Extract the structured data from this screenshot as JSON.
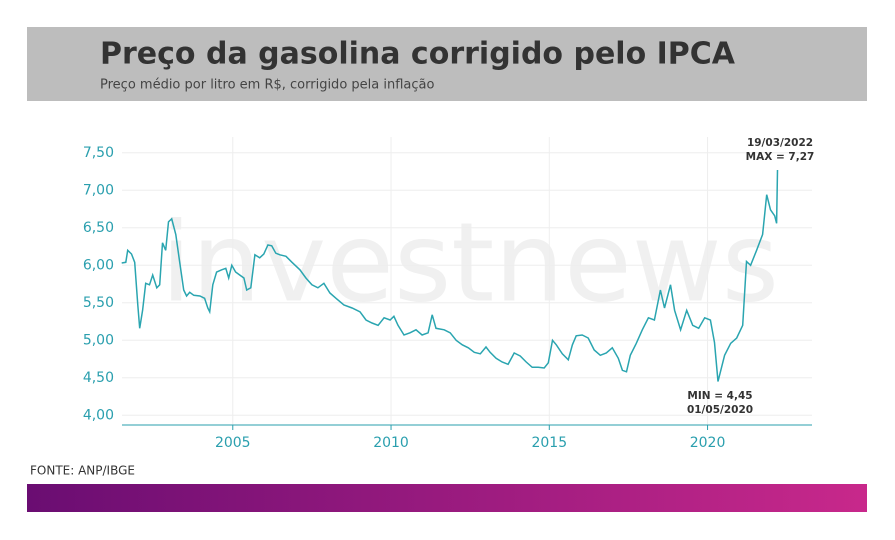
{
  "chart_data": {
    "type": "line",
    "title": "Preço da gasolina corrigido pelo IPCA",
    "subtitle": "Preço médio por litro em R$, corrigido pela inflação",
    "source": "FONTE: ANP/IBGE",
    "watermark": "investnews",
    "color": "#2aa5b0",
    "grid": true,
    "xlim": [
      2001.5,
      2023.3
    ],
    "ylim": [
      3.87,
      7.71
    ],
    "xticks": [
      2005,
      2010,
      2015,
      2020
    ],
    "yticks": [
      {
        "value": 4,
        "label": "4,00"
      },
      {
        "value": 4.5,
        "label": "4,50"
      },
      {
        "value": 5,
        "label": "5,00"
      },
      {
        "value": 5.5,
        "label": "5,50"
      },
      {
        "value": 6,
        "label": "6,00"
      },
      {
        "value": 6.5,
        "label": "6,50"
      },
      {
        "value": 7,
        "label": "7,00"
      },
      {
        "value": 7.5,
        "label": "7,50"
      }
    ],
    "x": [
      2001.49,
      2001.62,
      2001.68,
      2001.8,
      2001.9,
      2002.0,
      2002.06,
      2002.15,
      2002.25,
      2002.37,
      2002.47,
      2002.6,
      2002.69,
      2002.78,
      2002.88,
      2002.97,
      2003.07,
      2003.2,
      2003.32,
      2003.45,
      2003.54,
      2003.64,
      2003.77,
      2003.96,
      2004.11,
      2004.21,
      2004.27,
      2004.37,
      2004.49,
      2004.65,
      2004.78,
      2004.87,
      2004.97,
      2005.09,
      2005.22,
      2005.35,
      2005.44,
      2005.57,
      2005.7,
      2005.85,
      2005.98,
      2006.11,
      2006.23,
      2006.36,
      2006.49,
      2006.68,
      2006.87,
      2007.12,
      2007.31,
      2007.5,
      2007.69,
      2007.88,
      2008.07,
      2008.26,
      2008.51,
      2008.77,
      2009.02,
      2009.21,
      2009.4,
      2009.59,
      2009.78,
      2009.97,
      2010.09,
      2010.22,
      2010.41,
      2010.6,
      2010.79,
      2010.98,
      2011.17,
      2011.3,
      2011.42,
      2011.68,
      2011.87,
      2012.06,
      2012.25,
      2012.44,
      2012.63,
      2012.82,
      2013.0,
      2013.13,
      2013.32,
      2013.51,
      2013.7,
      2013.89,
      2014.08,
      2014.27,
      2014.46,
      2014.65,
      2014.84,
      2014.97,
      2015.1,
      2015.22,
      2015.41,
      2015.6,
      2015.73,
      2015.85,
      2016.04,
      2016.23,
      2016.42,
      2016.61,
      2016.8,
      2016.99,
      2017.18,
      2017.31,
      2017.44,
      2017.56,
      2017.75,
      2017.94,
      2018.13,
      2018.32,
      2018.51,
      2018.64,
      2018.83,
      2018.96,
      2019.15,
      2019.34,
      2019.53,
      2019.72,
      2019.91,
      2020.09,
      2020.22,
      2020.33,
      2020.54,
      2020.73,
      2020.92,
      2021.11,
      2021.23,
      2021.36,
      2021.55,
      2021.74,
      2021.87,
      2021.99,
      2022.12,
      2022.18,
      2022.21
    ],
    "values": [
      6.03,
      6.04,
      6.2,
      6.15,
      6.04,
      5.47,
      5.16,
      5.4,
      5.76,
      5.74,
      5.87,
      5.7,
      5.74,
      6.3,
      6.2,
      6.58,
      6.62,
      6.41,
      6.05,
      5.67,
      5.59,
      5.64,
      5.6,
      5.59,
      5.56,
      5.43,
      5.38,
      5.74,
      5.91,
      5.94,
      5.96,
      5.83,
      6.0,
      5.91,
      5.87,
      5.83,
      5.67,
      5.7,
      6.14,
      6.1,
      6.15,
      6.27,
      6.26,
      6.16,
      6.14,
      6.12,
      6.04,
      5.94,
      5.83,
      5.74,
      5.7,
      5.76,
      5.63,
      5.56,
      5.47,
      5.43,
      5.38,
      5.27,
      5.23,
      5.2,
      5.3,
      5.27,
      5.32,
      5.2,
      5.07,
      5.1,
      5.14,
      5.07,
      5.1,
      5.34,
      5.16,
      5.14,
      5.1,
      5.0,
      4.94,
      4.9,
      4.84,
      4.82,
      4.91,
      4.84,
      4.76,
      4.71,
      4.68,
      4.83,
      4.79,
      4.71,
      4.64,
      4.64,
      4.63,
      4.7,
      5.0,
      4.94,
      4.82,
      4.74,
      4.94,
      5.06,
      5.07,
      5.03,
      4.87,
      4.8,
      4.83,
      4.9,
      4.76,
      4.6,
      4.58,
      4.8,
      4.96,
      5.14,
      5.3,
      5.27,
      5.67,
      5.43,
      5.74,
      5.4,
      5.14,
      5.4,
      5.2,
      5.16,
      5.3,
      5.27,
      4.97,
      4.45,
      4.8,
      4.96,
      5.03,
      5.2,
      6.05,
      6.0,
      6.2,
      6.41,
      6.94,
      6.74,
      6.66,
      6.56,
      7.27
    ],
    "annotations": [
      {
        "lines": [
          "19/03/2022",
          "MAX = 7,27"
        ]
      },
      {
        "lines": [
          "MIN = 4,45",
          "01/05/2020"
        ]
      }
    ]
  }
}
